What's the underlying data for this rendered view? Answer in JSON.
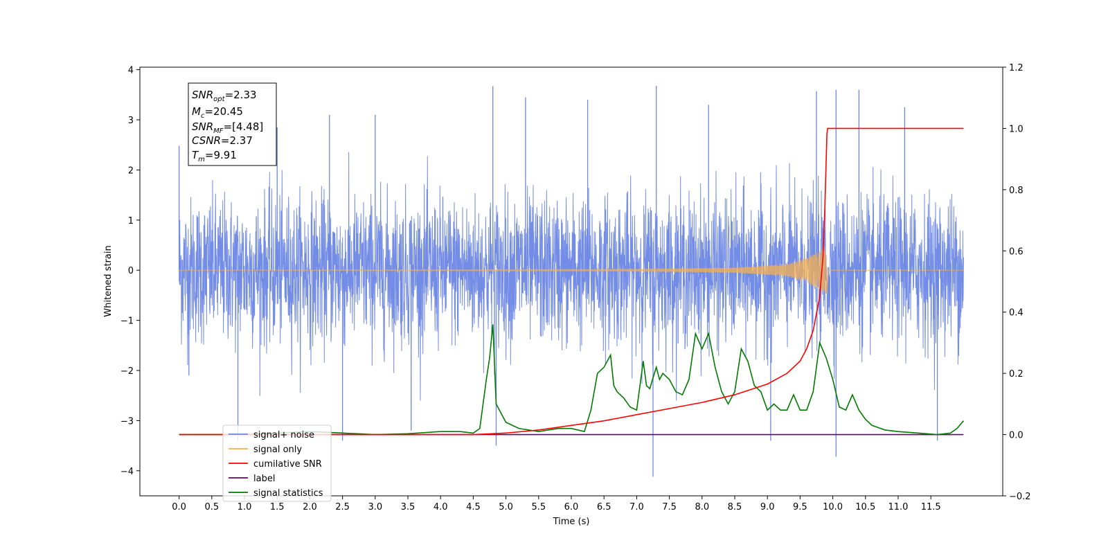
{
  "chart_data": {
    "type": "line",
    "xlabel": "Time (s)",
    "ylabel": "Whitened strain",
    "xlim": [
      -0.6,
      12.6
    ],
    "ylim": [
      -4.5,
      4.05
    ],
    "y2lim": [
      -0.2,
      1.2
    ],
    "x_ticks": [
      "0.0",
      "0.5",
      "1.0",
      "1.5",
      "2.0",
      "2.5",
      "3.0",
      "3.5",
      "4.0",
      "4.5",
      "5.0",
      "5.5",
      "6.0",
      "6.5",
      "7.0",
      "7.5",
      "8.0",
      "8.5",
      "9.0",
      "9.5",
      "10.0",
      "10.5",
      "11.0",
      "11.5"
    ],
    "y_ticks": [
      "4",
      "3",
      "2",
      "1",
      "0",
      "−1",
      "−2",
      "−3",
      "−4"
    ],
    "y_tick_values": [
      4,
      3,
      2,
      1,
      0,
      -1,
      -2,
      -3,
      -4
    ],
    "y2_ticks": [
      "1.2",
      "1.0",
      "0.8",
      "0.6",
      "0.4",
      "0.2",
      "0.0",
      "−0.2"
    ],
    "y2_tick_values": [
      1.2,
      1.0,
      0.8,
      0.6,
      0.4,
      0.2,
      0.0,
      -0.2
    ],
    "annotation": {
      "snr_opt": {
        "main": "SNR",
        "sub": "opt",
        "value": "=2.33"
      },
      "mc": {
        "main": "M",
        "sub": "c",
        "value": "=20.45"
      },
      "snr_mf": {
        "main": "SNR",
        "sub": "MF",
        "value": "=[4.48]"
      },
      "csnr": {
        "main": "CSNR",
        "value": "=2.37"
      },
      "tm": {
        "main": "T",
        "sub": "m",
        "value": "=9.91"
      }
    },
    "legend_placement": "lower-left",
    "series": [
      {
        "name": "signal+ noise",
        "color": "#6b86e4",
        "axis": "left",
        "t_start": 0.0,
        "t_end": 12.0,
        "typical_range": [
          -2.0,
          2.0
        ],
        "extremes": [
          {
            "x": 0.0,
            "y": 2.48
          },
          {
            "x": 0.15,
            "y": -2.1
          },
          {
            "x": 0.9,
            "y": -3.4
          },
          {
            "x": 1.5,
            "y": 2.85
          },
          {
            "x": 2.3,
            "y": 3.1
          },
          {
            "x": 2.5,
            "y": -3.4
          },
          {
            "x": 3.0,
            "y": 3.1
          },
          {
            "x": 3.55,
            "y": -3.2
          },
          {
            "x": 4.8,
            "y": 3.67
          },
          {
            "x": 4.85,
            "y": -3.5
          },
          {
            "x": 5.3,
            "y": 3.45
          },
          {
            "x": 6.25,
            "y": 3.4
          },
          {
            "x": 7.25,
            "y": -4.12
          },
          {
            "x": 7.3,
            "y": 3.68
          },
          {
            "x": 8.1,
            "y": 3.3
          },
          {
            "x": 9.05,
            "y": -3.4
          },
          {
            "x": 9.75,
            "y": 3.57
          },
          {
            "x": 10.05,
            "y": -3.72
          },
          {
            "x": 10.05,
            "y": 3.6
          },
          {
            "x": 10.4,
            "y": 3.6
          },
          {
            "x": 11.1,
            "y": 3.25
          },
          {
            "x": 11.6,
            "y": -3.4
          }
        ]
      },
      {
        "name": "signal only",
        "color": "#f5b04f",
        "axis": "left",
        "note": "chirp growing until merger",
        "points": [
          {
            "x": 0.0,
            "y": 0.0
          },
          {
            "x": 7.0,
            "y": 0.02
          },
          {
            "x": 8.5,
            "y": 0.05
          },
          {
            "x": 9.3,
            "y": 0.12
          },
          {
            "x": 9.6,
            "y": 0.25
          },
          {
            "x": 9.8,
            "y": 0.4
          },
          {
            "x": 9.91,
            "y": 0.48
          },
          {
            "x": 9.91,
            "y": -0.48
          },
          {
            "x": 9.93,
            "y": 0.0
          },
          {
            "x": 12.0,
            "y": 0.0
          }
        ]
      },
      {
        "name": "cumilative SNR",
        "color": "#ff0000",
        "axis": "right",
        "x": [
          0.0,
          4.5,
          5.0,
          5.5,
          6.0,
          6.5,
          7.0,
          7.5,
          8.0,
          8.5,
          9.0,
          9.3,
          9.5,
          9.6,
          9.7,
          9.8,
          9.85,
          9.88,
          9.91,
          9.92,
          12.0
        ],
        "values": [
          0.0,
          0.0,
          0.005,
          0.015,
          0.03,
          0.045,
          0.065,
          0.085,
          0.105,
          0.13,
          0.165,
          0.2,
          0.24,
          0.28,
          0.34,
          0.45,
          0.58,
          0.75,
          0.98,
          1.0,
          1.0
        ]
      },
      {
        "name": "label",
        "color": "#6a006a",
        "axis": "right",
        "x": [
          0.0,
          12.0
        ],
        "values": [
          0.0,
          0.0
        ]
      },
      {
        "name": "signal statistics",
        "color": "#007a00",
        "axis": "right",
        "x": [
          0.0,
          1.0,
          2.0,
          2.5,
          3.0,
          3.5,
          4.0,
          4.3,
          4.5,
          4.6,
          4.7,
          4.75,
          4.8,
          4.85,
          4.9,
          5.0,
          5.2,
          5.5,
          5.8,
          6.0,
          6.2,
          6.3,
          6.4,
          6.5,
          6.6,
          6.65,
          6.7,
          6.8,
          6.9,
          7.0,
          7.1,
          7.15,
          7.2,
          7.3,
          7.35,
          7.4,
          7.5,
          7.6,
          7.7,
          7.8,
          7.9,
          8.0,
          8.1,
          8.2,
          8.3,
          8.4,
          8.5,
          8.6,
          8.7,
          8.8,
          8.9,
          9.0,
          9.1,
          9.2,
          9.3,
          9.4,
          9.5,
          9.6,
          9.7,
          9.8,
          9.9,
          10.0,
          10.1,
          10.2,
          10.3,
          10.4,
          10.5,
          10.6,
          10.8,
          11.0,
          11.3,
          11.6,
          11.8,
          11.9,
          12.0
        ],
        "values": [
          0.0,
          0.0,
          0.01,
          0.005,
          0.0,
          0.003,
          0.01,
          0.01,
          0.005,
          0.02,
          0.18,
          0.25,
          0.36,
          0.1,
          0.08,
          0.04,
          0.02,
          0.01,
          0.02,
          0.02,
          0.01,
          0.08,
          0.2,
          0.22,
          0.26,
          0.16,
          0.14,
          0.12,
          0.09,
          0.08,
          0.24,
          0.16,
          0.15,
          0.22,
          0.18,
          0.2,
          0.18,
          0.14,
          0.13,
          0.18,
          0.33,
          0.28,
          0.33,
          0.22,
          0.14,
          0.1,
          0.14,
          0.28,
          0.24,
          0.16,
          0.14,
          0.08,
          0.1,
          0.08,
          0.08,
          0.13,
          0.08,
          0.08,
          0.14,
          0.3,
          0.25,
          0.18,
          0.09,
          0.08,
          0.13,
          0.08,
          0.05,
          0.03,
          0.015,
          0.01,
          0.005,
          0.0,
          0.005,
          0.02,
          0.045
        ]
      }
    ],
    "legend_entries": [
      "signal+ noise",
      "signal only",
      "cumilative SNR",
      "label",
      "signal statistics"
    ]
  }
}
